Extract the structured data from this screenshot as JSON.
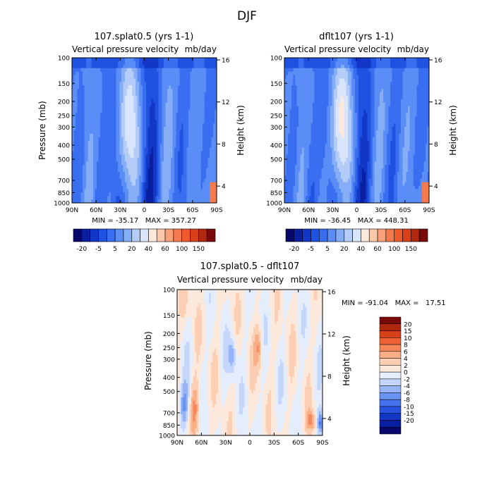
{
  "page_title": "DJF",
  "colors": {
    "field_scale": [
      "#08086b",
      "#0a1fa0",
      "#1236c6",
      "#1f52e0",
      "#3a6ef0",
      "#5a8df5",
      "#86aef6",
      "#b3ccf8",
      "#d9e5fb",
      "#fde9dc",
      "#fbc9aa",
      "#f8a077",
      "#f47a4d",
      "#ef5a2c",
      "#d8401a",
      "#b02810",
      "#7a0a0a"
    ],
    "diff_scale": [
      "#08086b",
      "#0a1fa0",
      "#1236c6",
      "#2852e0",
      "#4472ec",
      "#6a93f2",
      "#97b5f6",
      "#c4d6fa",
      "#e4edfc",
      "#fde9dc",
      "#fccfb4",
      "#f9ae86",
      "#f5875a",
      "#ef6235",
      "#d8401a",
      "#b02810",
      "#7a0a0a"
    ]
  },
  "chart_data": [
    {
      "type": "heatmap",
      "title": "107.splat0.5 (yrs 1-1)",
      "subtitle": "Vertical pressure velocity",
      "units": "mb/day",
      "xlabel": "",
      "ylabel": "Pressure (mb)",
      "y2label": "Height (km)",
      "x_ticks": [
        "90N",
        "60N",
        "30N",
        "0",
        "30S",
        "60S",
        "90S"
      ],
      "y_ticks": [
        "100",
        "150",
        "200",
        "250",
        "300",
        "400",
        "500",
        "700",
        "850",
        "1000"
      ],
      "y_tick_values": [
        100,
        150,
        200,
        250,
        300,
        400,
        500,
        700,
        850,
        1000
      ],
      "y2_ticks": [
        "16",
        "12",
        "8",
        "4"
      ],
      "y2_tick_values": [
        16,
        12,
        8,
        4
      ],
      "stats": "MIN = -35.17   MAX = 357.27",
      "colorbar_labels": [
        "-20",
        "-5",
        "5",
        "20",
        "40",
        "60",
        "100",
        "150"
      ],
      "field": "a",
      "legend": "horizontal-below"
    },
    {
      "type": "heatmap",
      "title": "dflt107 (yrs 1-1)",
      "subtitle": "Vertical pressure velocity",
      "units": "mb/day",
      "xlabel": "",
      "ylabel": "",
      "y2label": "Height (km)",
      "x_ticks": [
        "90N",
        "60N",
        "30N",
        "0",
        "30S",
        "60S",
        "90S"
      ],
      "y_ticks": [
        "100",
        "150",
        "200",
        "250",
        "300",
        "400",
        "500",
        "700",
        "850",
        "1000"
      ],
      "y_tick_values": [
        100,
        150,
        200,
        250,
        300,
        400,
        500,
        700,
        850,
        1000
      ],
      "y2_ticks": [
        "16",
        "12",
        "8",
        "4"
      ],
      "y2_tick_values": [
        16,
        12,
        8,
        4
      ],
      "stats": "MIN = -36.45   MAX = 448.31",
      "colorbar_labels": [
        "-20",
        "-5",
        "5",
        "20",
        "40",
        "60",
        "100",
        "150"
      ],
      "field": "b",
      "legend": "horizontal-below"
    },
    {
      "type": "heatmap",
      "title": "107.splat0.5 - dflt107",
      "subtitle": "Vertical pressure velocity",
      "units": "mb/day",
      "xlabel": "",
      "ylabel": "Pressure (mb)",
      "y2label": "Height (km)",
      "x_ticks": [
        "90N",
        "60N",
        "30N",
        "0",
        "30S",
        "60S",
        "90S"
      ],
      "y_ticks": [
        "100",
        "150",
        "200",
        "250",
        "300",
        "400",
        "500",
        "700",
        "850",
        "1000"
      ],
      "y_tick_values": [
        100,
        150,
        200,
        250,
        300,
        400,
        500,
        700,
        850,
        1000
      ],
      "y2_ticks": [
        "16",
        "12",
        "8",
        "4"
      ],
      "y2_tick_values": [
        16,
        12,
        8,
        4
      ],
      "stats": "MIN = -91.04   MAX =   17.51",
      "colorbar_labels": [
        "20",
        "15",
        "10",
        "8",
        "6",
        "4",
        "2",
        "0",
        "-2",
        "-4",
        "-6",
        "-8",
        "-10",
        "-15",
        "-20"
      ],
      "field": "diff",
      "legend": "vertical-right"
    }
  ]
}
